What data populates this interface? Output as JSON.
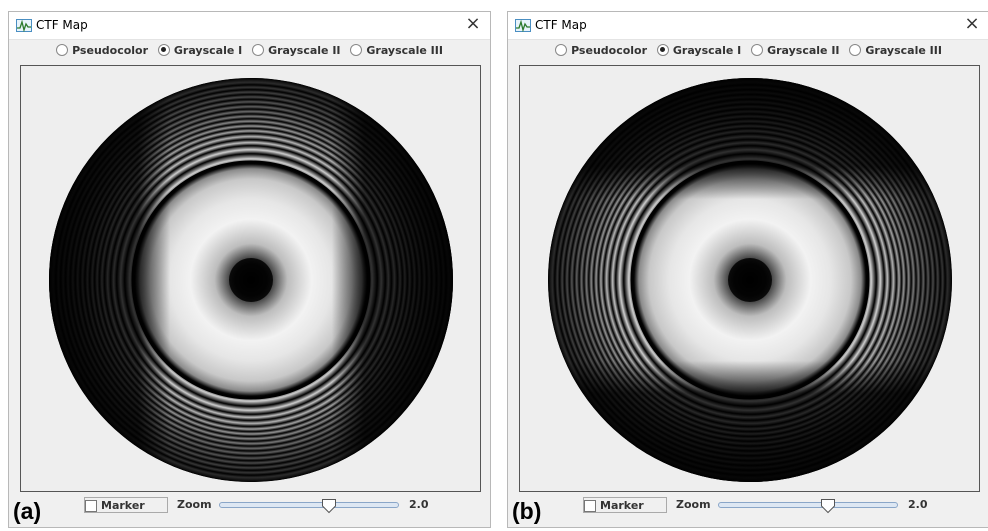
{
  "windows": [
    {
      "title": "CTF Map",
      "close_glyph": "×",
      "modes": [
        {
          "label": "Pseudocolor",
          "selected": false
        },
        {
          "label": "Grayscale I",
          "selected": true
        },
        {
          "label": "Grayscale II",
          "selected": false
        },
        {
          "label": "Grayscale III",
          "selected": false
        }
      ],
      "map": {
        "dark_band_orientation": "vertical"
      },
      "panel_letter": "(a)",
      "marker": {
        "label": "Marker",
        "checked": false
      },
      "zoom": {
        "label": "Zoom",
        "value": "2.0",
        "level": 0.62
      }
    },
    {
      "title": "CTF Map",
      "close_glyph": "×",
      "modes": [
        {
          "label": "Pseudocolor",
          "selected": false
        },
        {
          "label": "Grayscale I",
          "selected": true
        },
        {
          "label": "Grayscale II",
          "selected": false
        },
        {
          "label": "Grayscale III",
          "selected": false
        }
      ],
      "map": {
        "dark_band_orientation": "horizontal"
      },
      "panel_letter": "(b)",
      "marker": {
        "label": "Marker",
        "checked": false
      },
      "zoom": {
        "label": "Zoom",
        "value": "2.0",
        "level": 0.62
      }
    }
  ],
  "icons": {
    "app": "ctf-map-app-icon",
    "close": "close-icon",
    "slider_thumb": "slider-thumb-icon"
  },
  "colors": {
    "window_bg": "#f0f0f0",
    "titlebar_bg": "#ffffff",
    "map_bg": "#eeeeee",
    "ring_light": "#ffffff",
    "ring_dark": "#000000",
    "slider_track": "#dde7f3",
    "slider_border": "#8aa6c8"
  }
}
